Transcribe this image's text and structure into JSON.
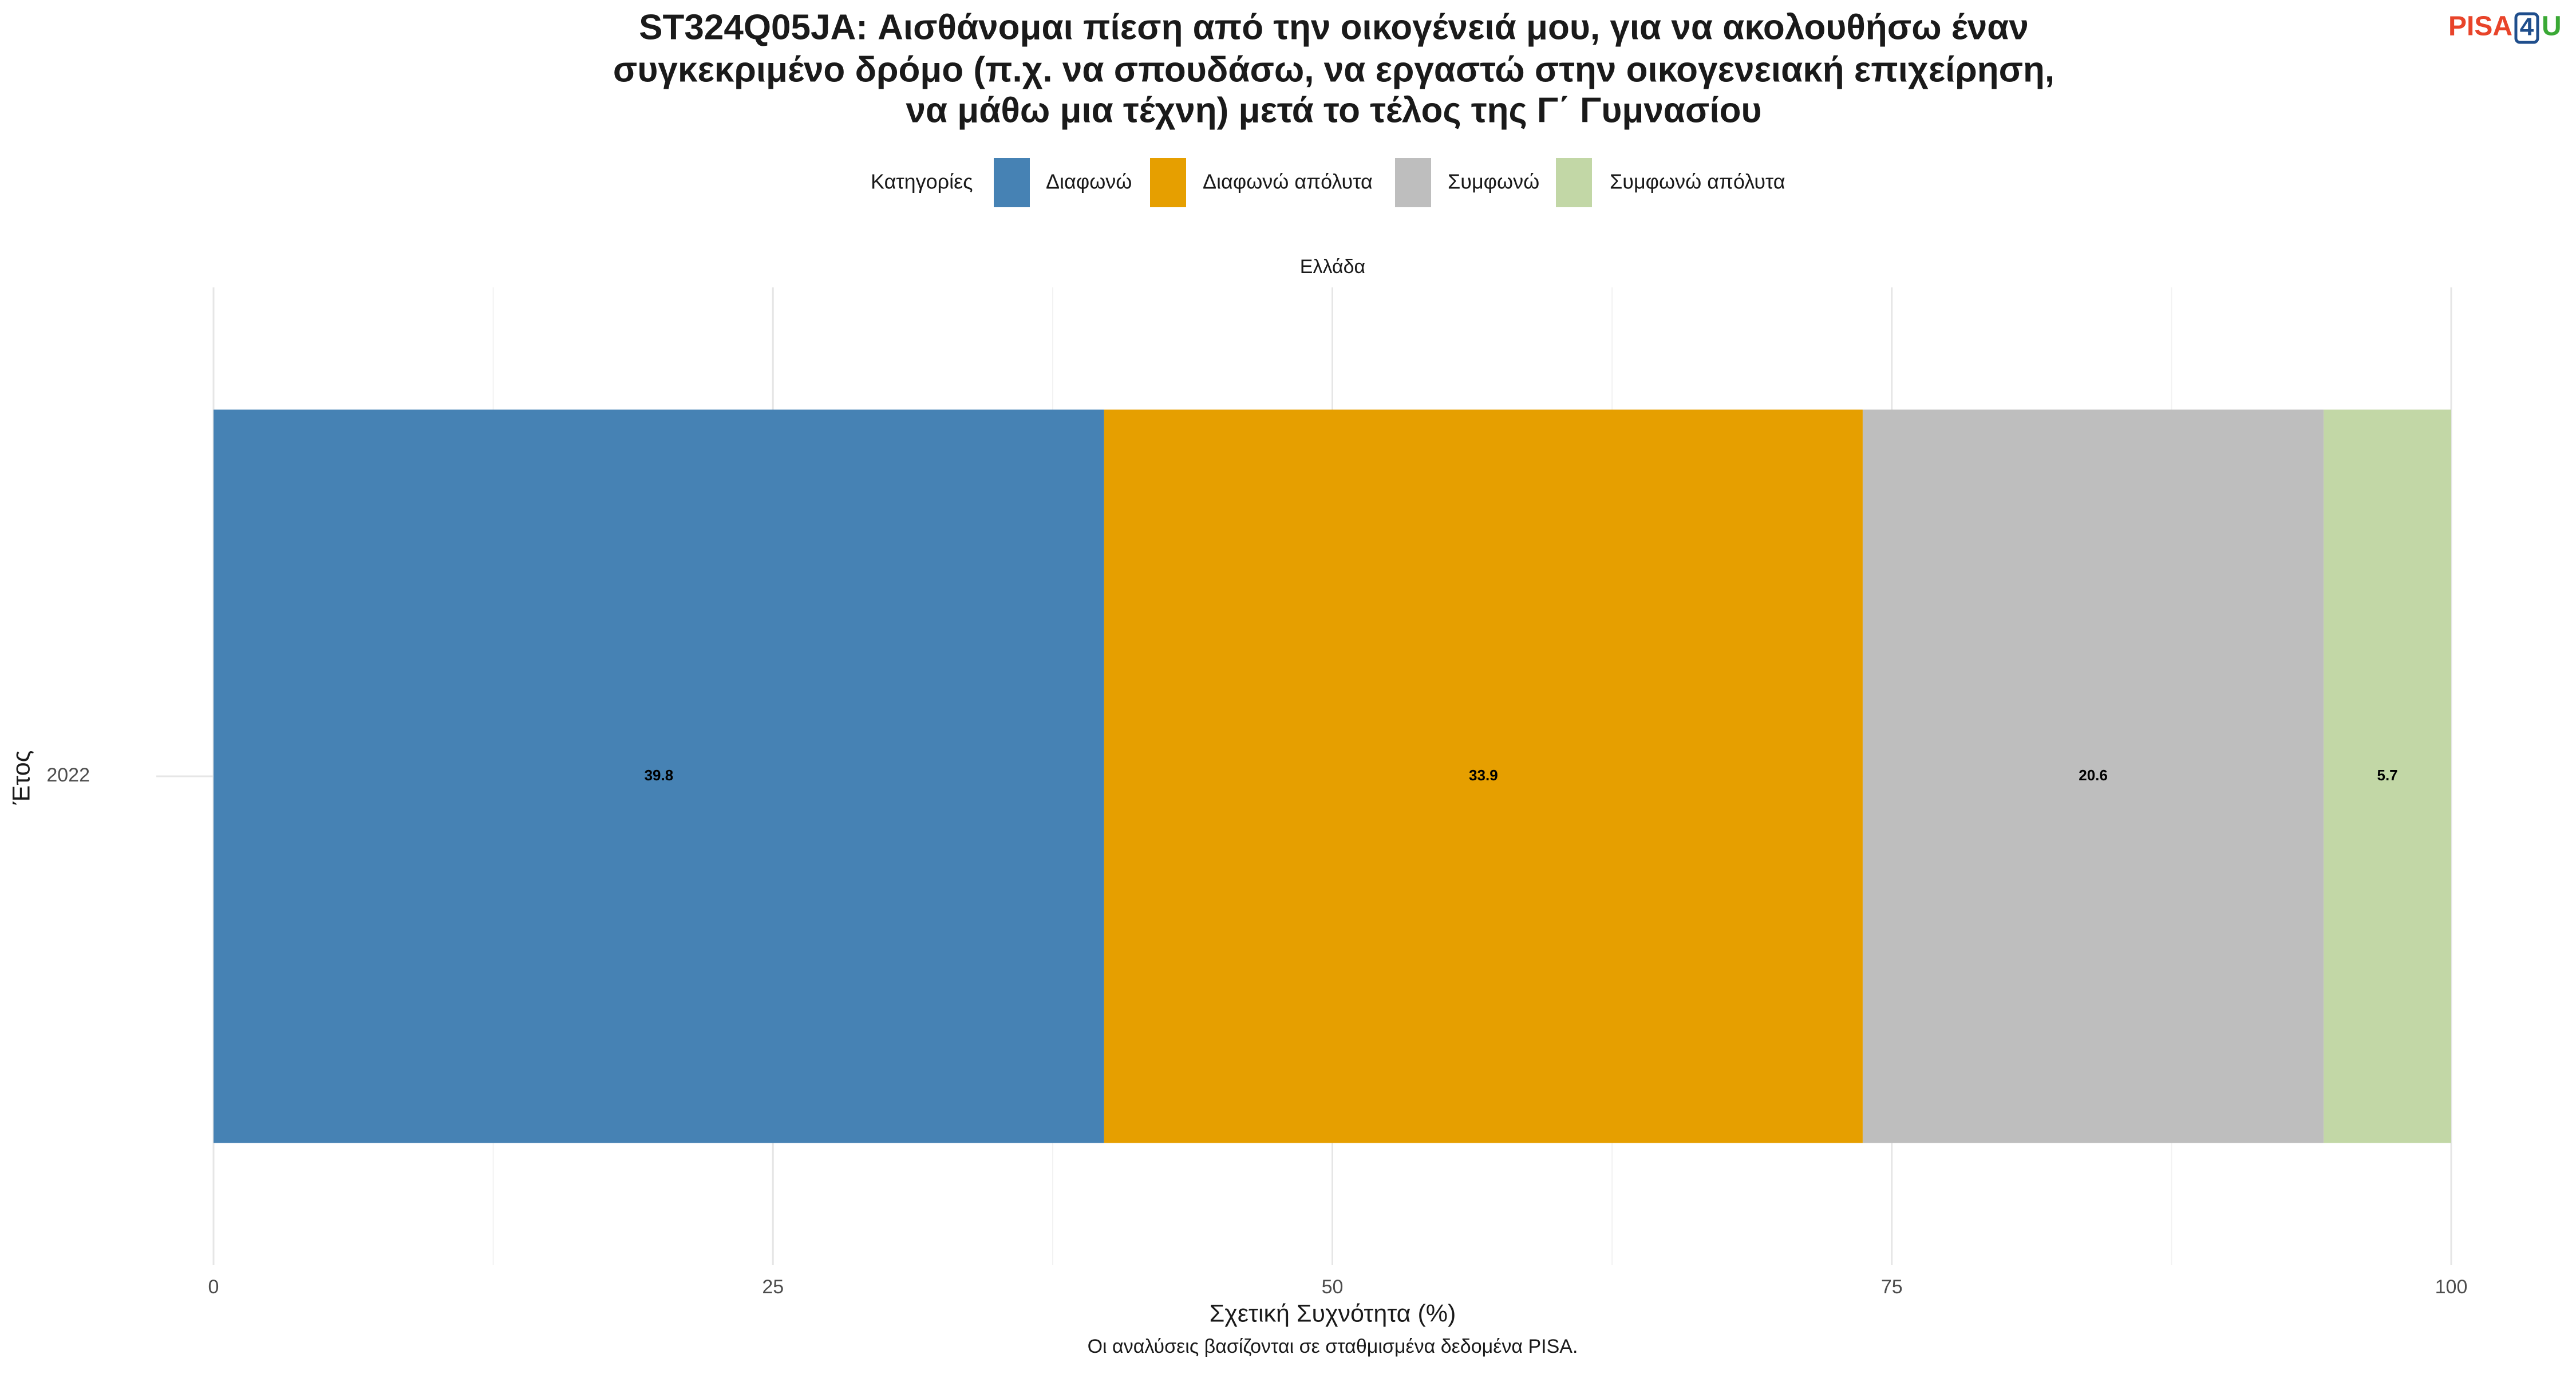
{
  "chart_data": {
    "type": "bar",
    "orientation": "horizontal",
    "stacked": true,
    "title": [
      "ST324Q05JA: Αισθάνομαι πίεση από την οικογένειά μου, για να ακολουθήσω έναν",
      "συγκεκριμένο δρόμο (π.χ. να σπουδάσω, να εργαστώ στην οικογενειακή επιχείρηση,",
      "να μάθω μια τέχνη) μετά το τέλος της Γ΄ Γυμνασίου"
    ],
    "logo": [
      "PISA",
      "4",
      "U"
    ],
    "legend_title": "Κατηγορίες",
    "facet": "Ελλάδα",
    "x_label": "Σχετική Συχνότητα (%)",
    "y_label": "Έτος",
    "caption": "Οι αναλύσεις βασίζονται σε σταθμισμένα δεδομένα PISA.",
    "categories": [
      "2022"
    ],
    "series": [
      {
        "name": "Διαφωνώ",
        "color": "#4682b4",
        "values": [
          39.8
        ]
      },
      {
        "name": "Διαφωνώ απόλυτα",
        "color": "#e69f00",
        "values": [
          33.9
        ]
      },
      {
        "name": "Συμφωνώ",
        "color": "#bebebe",
        "values": [
          20.6
        ]
      },
      {
        "name": "Συμφωνώ απόλυτα",
        "color": "#c2d7a6",
        "values": [
          5.7
        ]
      }
    ],
    "xlim": [
      0,
      100
    ],
    "xticks": [
      0,
      25,
      50,
      75,
      100
    ],
    "minor_xticks": [
      12.5,
      37.5,
      62.5,
      87.5
    ],
    "grid": true
  }
}
